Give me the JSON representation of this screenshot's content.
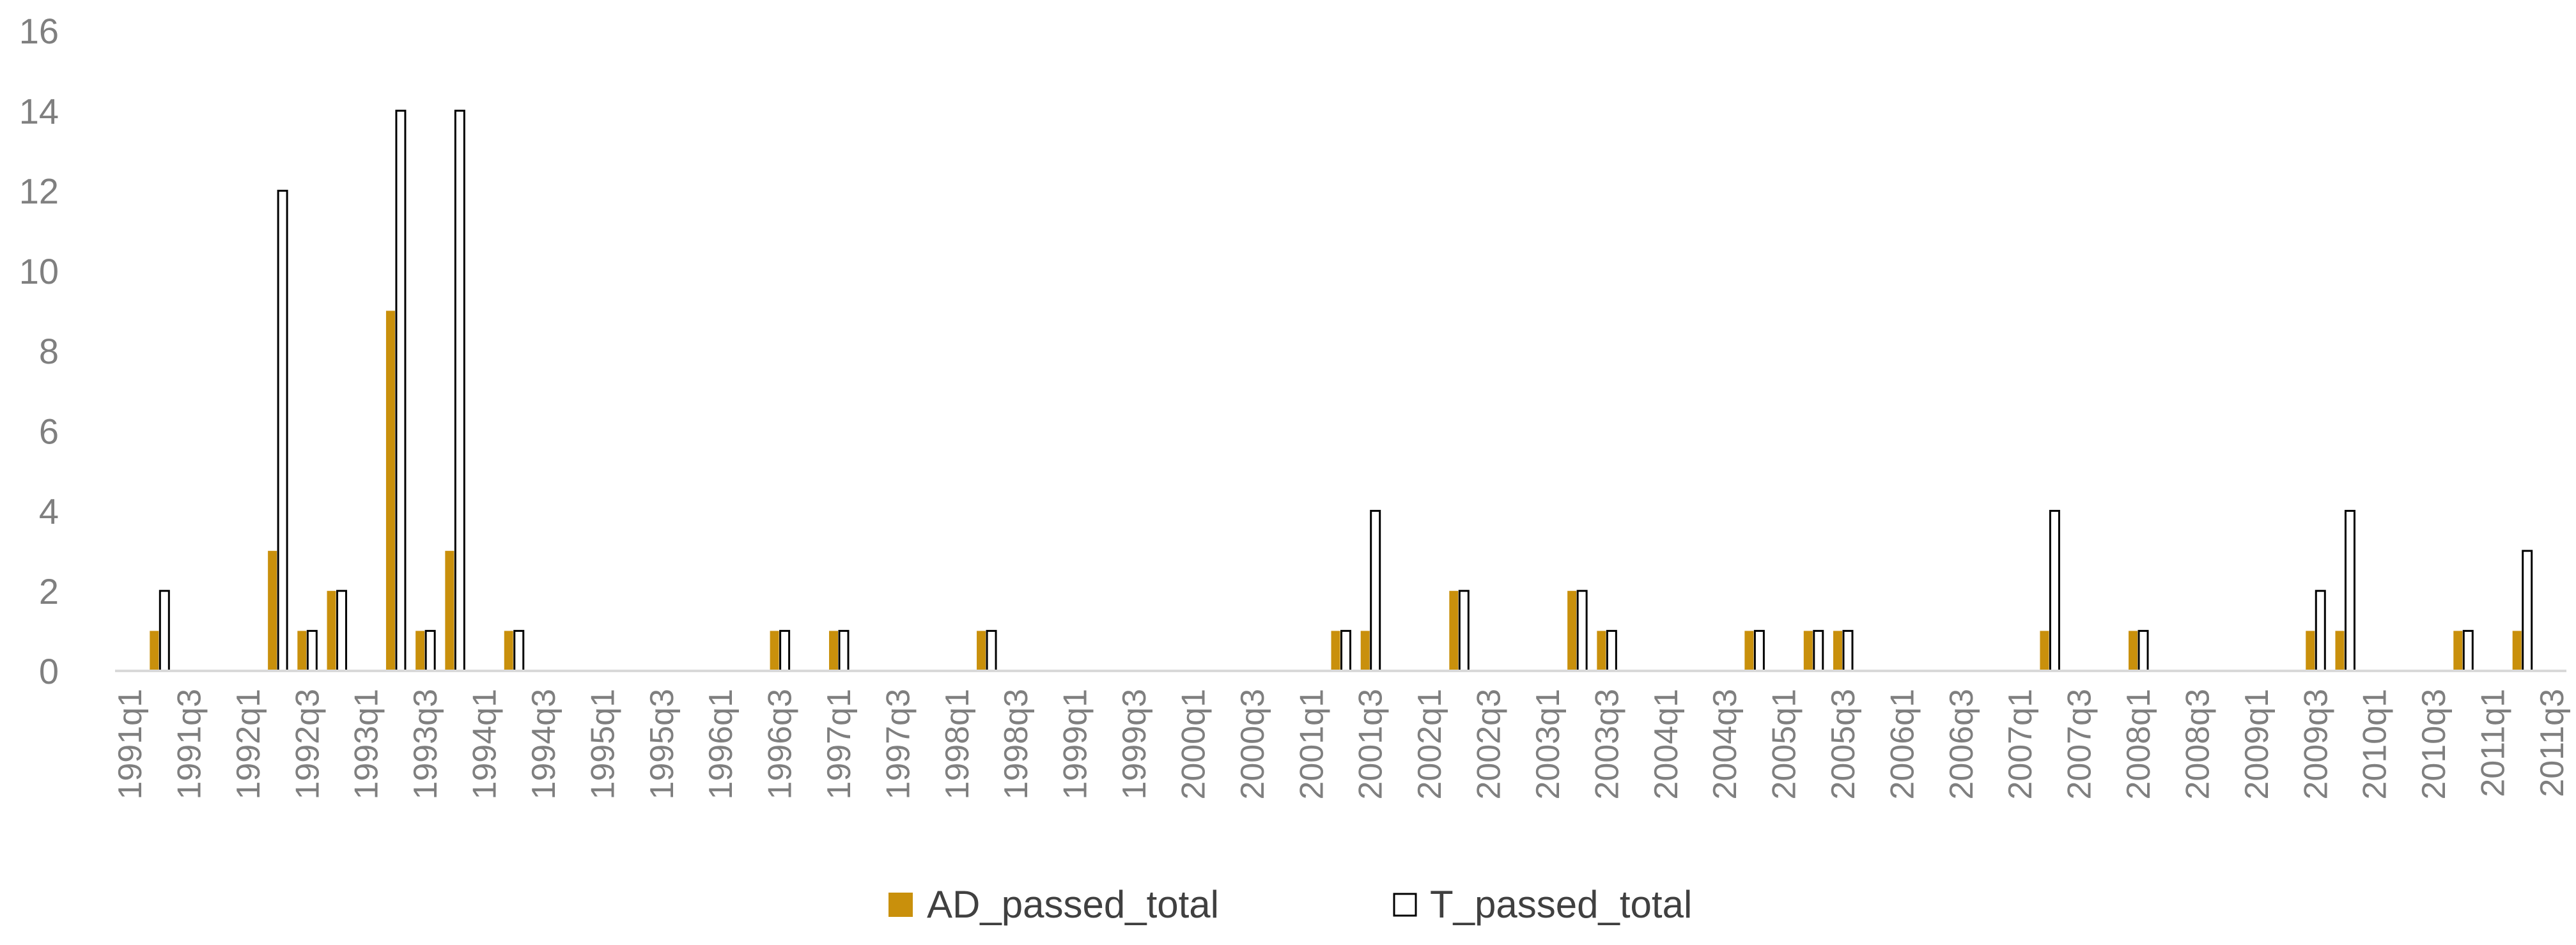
{
  "chart_data": {
    "type": "bar",
    "categories": [
      "1991q1",
      "1991q2",
      "1991q3",
      "1991q4",
      "1992q1",
      "1992q2",
      "1992q3",
      "1992q4",
      "1993q1",
      "1993q2",
      "1993q3",
      "1993q4",
      "1994q1",
      "1994q2",
      "1994q3",
      "1994q4",
      "1995q1",
      "1995q2",
      "1995q3",
      "1995q4",
      "1996q1",
      "1996q2",
      "1996q3",
      "1996q4",
      "1997q1",
      "1997q2",
      "1997q3",
      "1997q4",
      "1998q1",
      "1998q2",
      "1998q3",
      "1998q4",
      "1999q1",
      "1999q2",
      "1999q3",
      "1999q4",
      "2000q1",
      "2000q2",
      "2000q3",
      "2000q4",
      "2001q1",
      "2001q2",
      "2001q3",
      "2001q4",
      "2002q1",
      "2002q2",
      "2002q3",
      "2002q4",
      "2003q1",
      "2003q2",
      "2003q3",
      "2003q4",
      "2004q1",
      "2004q2",
      "2004q3",
      "2004q4",
      "2005q1",
      "2005q2",
      "2005q3",
      "2005q4",
      "2006q1",
      "2006q2",
      "2006q3",
      "2006q4",
      "2007q1",
      "2007q2",
      "2007q3",
      "2007q4",
      "2008q1",
      "2008q2",
      "2008q3",
      "2008q4",
      "2009q1",
      "2009q2",
      "2009q3",
      "2009q4",
      "2010q1",
      "2010q2",
      "2010q3",
      "2010q4",
      "2011q1",
      "2011q2",
      "2011q3"
    ],
    "tick_labels": [
      "1991q1",
      "1991q3",
      "1992q1",
      "1992q3",
      "1993q1",
      "1993q3",
      "1994q1",
      "1994q3",
      "1995q1",
      "1995q3",
      "1996q1",
      "1996q3",
      "1997q1",
      "1997q3",
      "1998q1",
      "1998q3",
      "1999q1",
      "1999q3",
      "2000q1",
      "2000q3",
      "2001q1",
      "2001q3",
      "2002q1",
      "2002q3",
      "2003q1",
      "2003q3",
      "2004q1",
      "2004q3",
      "2005q1",
      "2005q3",
      "2006q1",
      "2006q3",
      "2007q1",
      "2007q3",
      "2008q1",
      "2008q3",
      "2009q1",
      "2009q3",
      "2010q1",
      "2010q3",
      "2011q1",
      "2011q3"
    ],
    "series": [
      {
        "name": "AD_passed_total",
        "color": "#C9900C",
        "values": [
          0,
          1,
          0,
          0,
          0,
          3,
          1,
          2,
          0,
          9,
          1,
          3,
          0,
          1,
          0,
          0,
          0,
          0,
          0,
          0,
          0,
          0,
          1,
          0,
          1,
          0,
          0,
          0,
          0,
          1,
          0,
          0,
          0,
          0,
          0,
          0,
          0,
          0,
          0,
          0,
          0,
          1,
          1,
          0,
          0,
          2,
          0,
          0,
          0,
          2,
          1,
          0,
          0,
          0,
          0,
          1,
          0,
          1,
          1,
          0,
          0,
          0,
          0,
          0,
          0,
          1,
          0,
          0,
          1,
          0,
          0,
          0,
          0,
          0,
          1,
          1,
          0,
          0,
          0,
          1,
          0,
          1,
          0
        ]
      },
      {
        "name": "T_passed_total",
        "color": "#FFFFFF",
        "values": [
          0,
          2,
          0,
          0,
          0,
          12,
          1,
          2,
          0,
          14,
          1,
          14,
          0,
          1,
          0,
          0,
          0,
          0,
          0,
          0,
          0,
          0,
          1,
          0,
          1,
          0,
          0,
          0,
          0,
          1,
          0,
          0,
          0,
          0,
          0,
          0,
          0,
          0,
          0,
          0,
          0,
          1,
          4,
          0,
          0,
          2,
          0,
          0,
          0,
          2,
          1,
          0,
          0,
          0,
          0,
          1,
          0,
          1,
          1,
          0,
          0,
          0,
          0,
          0,
          0,
          4,
          0,
          0,
          1,
          0,
          0,
          0,
          0,
          0,
          2,
          4,
          0,
          0,
          0,
          1,
          0,
          3,
          0
        ]
      }
    ],
    "y_ticks": [
      "0",
      "2",
      "4",
      "6",
      "8",
      "10",
      "12",
      "14",
      "16"
    ],
    "ylim": [
      0,
      16
    ],
    "grid": false,
    "legend_position": "bottom"
  }
}
